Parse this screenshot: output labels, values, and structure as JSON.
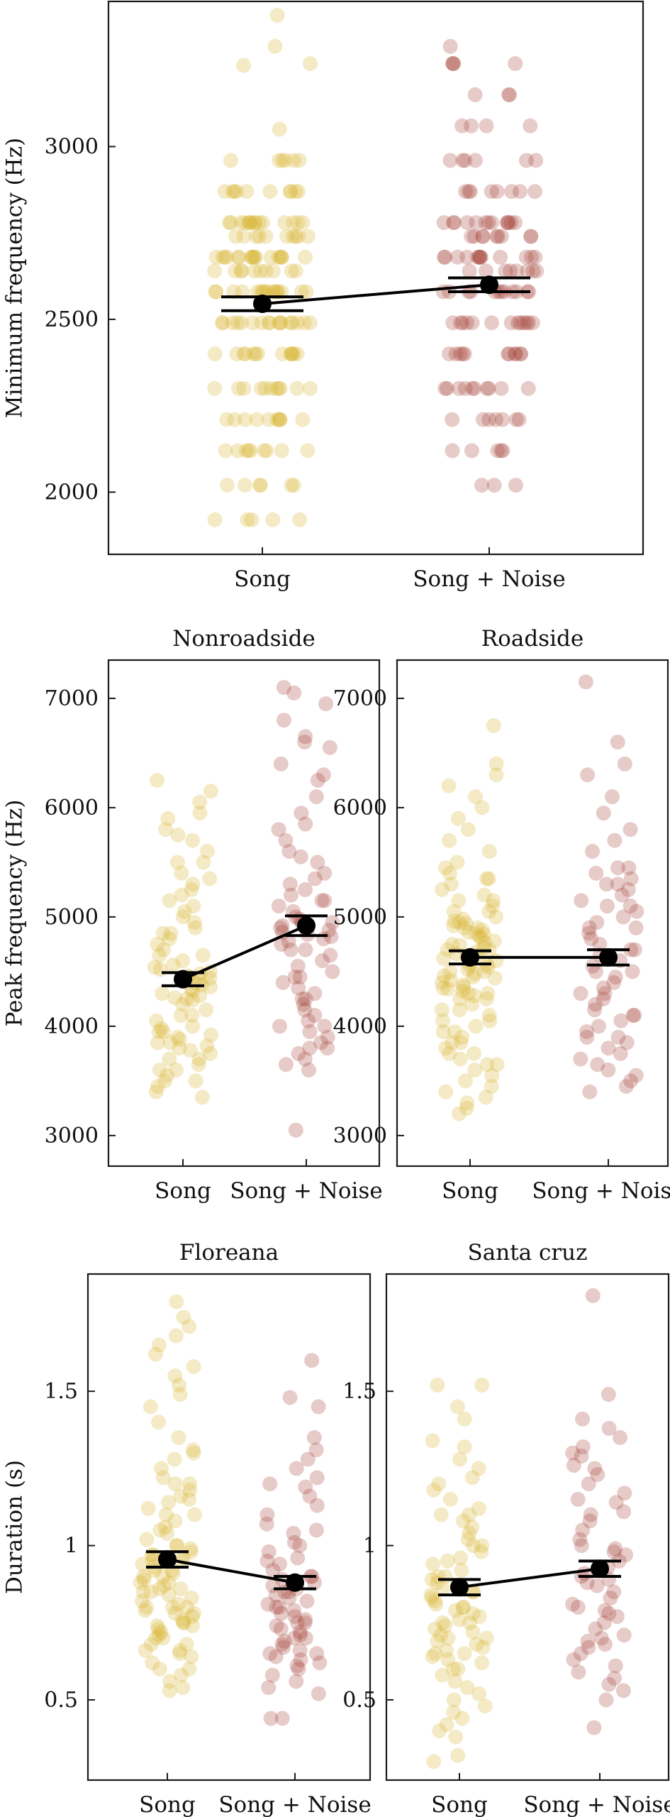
{
  "figure": {
    "colors": {
      "song": "#d9b430",
      "song_noise": "#a4443a",
      "mean": "#000000"
    }
  },
  "chart_data": [
    {
      "type": "scatter",
      "panel": "minimum-frequency",
      "title": "",
      "xlabel": "",
      "ylabel": "Minimum frequency (Hz)",
      "categories": [
        "Song",
        "Song + Noise"
      ],
      "ylim": [
        1820,
        3420
      ],
      "yticks": [
        2000,
        2500,
        3000
      ],
      "grid": false,
      "series": [
        {
          "category": "Song",
          "mean": 2545,
          "error_low": 2525,
          "error_high": 2565,
          "values": [
            3380,
            3235,
            3290,
            3240,
            3050,
            2960,
            2960,
            2960,
            2960,
            2960,
            2960,
            2870,
            2870,
            2870,
            2870,
            2870,
            2870,
            2870,
            2870,
            2870,
            2870,
            2780,
            2780,
            2780,
            2780,
            2780,
            2780,
            2780,
            2780,
            2780,
            2780,
            2780,
            2780,
            2780,
            2780,
            2780,
            2740,
            2740,
            2740,
            2740,
            2740,
            2740,
            2740,
            2740,
            2740,
            2740,
            2680,
            2680,
            2680,
            2680,
            2680,
            2680,
            2680,
            2680,
            2680,
            2680,
            2680,
            2680,
            2680,
            2680,
            2680,
            2680,
            2680,
            2640,
            2640,
            2640,
            2640,
            2640,
            2640,
            2640,
            2640,
            2640,
            2640,
            2580,
            2580,
            2580,
            2580,
            2580,
            2580,
            2580,
            2580,
            2580,
            2580,
            2580,
            2580,
            2580,
            2580,
            2580,
            2580,
            2490,
            2490,
            2490,
            2490,
            2490,
            2490,
            2490,
            2490,
            2490,
            2490,
            2490,
            2490,
            2490,
            2490,
            2490,
            2490,
            2490,
            2400,
            2400,
            2400,
            2400,
            2400,
            2400,
            2400,
            2400,
            2400,
            2400,
            2400,
            2400,
            2400,
            2300,
            2300,
            2300,
            2300,
            2300,
            2300,
            2300,
            2300,
            2300,
            2300,
            2300,
            2210,
            2210,
            2210,
            2210,
            2210,
            2210,
            2210,
            2210,
            2210,
            2210,
            2120,
            2120,
            2120,
            2120,
            2120,
            2120,
            2120,
            2120,
            2120,
            2020,
            2020,
            2020,
            2020,
            2020,
            2020,
            1920,
            1920,
            1920,
            1920,
            1920
          ]
        },
        {
          "category": "Song + Noise",
          "mean": 2600,
          "error_low": 2580,
          "error_high": 2620,
          "values": [
            3290,
            3240,
            3240,
            3240,
            3240,
            3150,
            3150,
            3150,
            3060,
            3060,
            3060,
            3060,
            2960,
            2960,
            2960,
            2960,
            2960,
            2960,
            2870,
            2870,
            2870,
            2870,
            2870,
            2870,
            2870,
            2870,
            2780,
            2780,
            2780,
            2780,
            2780,
            2780,
            2780,
            2780,
            2780,
            2780,
            2780,
            2780,
            2780,
            2740,
            2740,
            2740,
            2740,
            2740,
            2740,
            2740,
            2740,
            2740,
            2680,
            2680,
            2680,
            2680,
            2680,
            2680,
            2680,
            2680,
            2680,
            2680,
            2680,
            2680,
            2680,
            2640,
            2640,
            2640,
            2640,
            2640,
            2640,
            2640,
            2640,
            2580,
            2580,
            2580,
            2580,
            2580,
            2580,
            2580,
            2580,
            2580,
            2580,
            2580,
            2580,
            2490,
            2490,
            2490,
            2490,
            2490,
            2490,
            2490,
            2490,
            2490,
            2490,
            2490,
            2490,
            2490,
            2400,
            2400,
            2400,
            2400,
            2400,
            2400,
            2400,
            2400,
            2400,
            2400,
            2400,
            2300,
            2300,
            2300,
            2300,
            2300,
            2300,
            2300,
            2300,
            2300,
            2300,
            2210,
            2210,
            2210,
            2210,
            2210,
            2210,
            2210,
            2120,
            2120,
            2120,
            2120,
            2120,
            2020,
            2020,
            2020
          ]
        }
      ]
    },
    {
      "type": "scatter",
      "panel": "peak-frequency-nonroadside",
      "title": "Nonroadside",
      "xlabel": "",
      "ylabel": "Peak frequency (Hz)",
      "categories": [
        "Song",
        "Song + Noise"
      ],
      "ylim": [
        2720,
        7350
      ],
      "yticks": [
        3000,
        4000,
        5000,
        6000,
        7000
      ],
      "grid": false,
      "series": [
        {
          "category": "Song",
          "mean": 4430,
          "error_low": 4370,
          "error_high": 4490,
          "values": [
            6250,
            6150,
            6050,
            5950,
            5900,
            5800,
            5700,
            5600,
            5500,
            5400,
            5350,
            5300,
            5200,
            5100,
            5050,
            5000,
            4950,
            4900,
            4850,
            4800,
            4750,
            4700,
            4650,
            4600,
            4560,
            4540,
            4520,
            4500,
            4480,
            4460,
            4440,
            4420,
            4400,
            4380,
            4360,
            4340,
            4320,
            4300,
            4280,
            4260,
            4240,
            4200,
            4150,
            4100,
            4050,
            4000,
            3980,
            3950,
            3920,
            3900,
            3880,
            3850,
            3820,
            3800,
            3780,
            3750,
            3700,
            3650,
            3600,
            3550,
            3500,
            3450,
            3400,
            3350,
            5750,
            5500,
            5250,
            5150,
            4850,
            4650,
            4450,
            4250,
            4100,
            3950,
            3850,
            3700,
            3600,
            3500
          ]
        },
        {
          "category": "Song + Noise",
          "mean": 4920,
          "error_low": 4830,
          "error_high": 5010,
          "values": [
            7100,
            7050,
            6950,
            6800,
            6650,
            6550,
            6400,
            6250,
            6100,
            5950,
            5800,
            5700,
            5600,
            5500,
            5400,
            5350,
            5300,
            5250,
            5200,
            5150,
            5100,
            5050,
            5000,
            4980,
            4960,
            4940,
            4920,
            4900,
            4880,
            4860,
            4840,
            4820,
            4800,
            4780,
            4750,
            4700,
            4650,
            4600,
            4550,
            4500,
            4450,
            4400,
            4350,
            4300,
            4250,
            4200,
            4150,
            4100,
            4050,
            4000,
            3950,
            3900,
            3850,
            3800,
            3750,
            3700,
            3650,
            3600,
            3050,
            6600,
            6300,
            5850,
            5550,
            5150,
            4950,
            4700,
            4450,
            4250,
            4000,
            3800
          ]
        }
      ]
    },
    {
      "type": "scatter",
      "panel": "peak-frequency-roadside",
      "title": "Roadside",
      "xlabel": "",
      "ylabel": "",
      "categories": [
        "Song",
        "Song + Noise"
      ],
      "ylim": [
        2720,
        7350
      ],
      "yticks": [
        3000,
        4000,
        5000,
        6000,
        7000
      ],
      "grid": false,
      "series": [
        {
          "category": "Song",
          "mean": 4630,
          "error_low": 4570,
          "error_high": 4690,
          "values": [
            6750,
            6400,
            6300,
            6200,
            6100,
            6000,
            5900,
            5800,
            5700,
            5600,
            5500,
            5450,
            5400,
            5350,
            5300,
            5250,
            5200,
            5150,
            5100,
            5050,
            5000,
            4980,
            4960,
            4940,
            4920,
            4900,
            4880,
            4860,
            4840,
            4820,
            4800,
            4780,
            4760,
            4740,
            4720,
            4700,
            4680,
            4660,
            4640,
            4620,
            4600,
            4580,
            4560,
            4540,
            4520,
            4500,
            4480,
            4460,
            4440,
            4420,
            4400,
            4380,
            4360,
            4340,
            4320,
            4300,
            4280,
            4250,
            4200,
            4150,
            4100,
            4050,
            4000,
            3950,
            3900,
            3850,
            3800,
            3750,
            3700,
            3650,
            3600,
            3550,
            3500,
            3450,
            3400,
            3350,
            3300,
            3250,
            3200,
            5350,
            5150,
            4950,
            4850,
            4750,
            4650,
            4550,
            4450,
            4350,
            4250,
            4150,
            4050,
            3950,
            3850,
            3750,
            3650,
            5050,
            4900,
            4700,
            4500,
            4300
          ]
        },
        {
          "category": "Song + Noise",
          "mean": 4630,
          "error_low": 4560,
          "error_high": 4700,
          "values": [
            7150,
            6600,
            6400,
            6300,
            6100,
            5950,
            5800,
            5700,
            5600,
            5450,
            5400,
            5350,
            5300,
            5250,
            5200,
            5150,
            5100,
            5050,
            5000,
            4950,
            4900,
            4850,
            4800,
            4750,
            4700,
            4650,
            4600,
            4550,
            4500,
            4450,
            4400,
            4350,
            4300,
            4250,
            4200,
            4150,
            4100,
            4050,
            4000,
            3950,
            3900,
            3850,
            3800,
            3750,
            3700,
            3650,
            3600,
            3550,
            3500,
            3450,
            3400,
            5450,
            5300,
            5100,
            4900,
            4700,
            4500,
            4300,
            4100,
            3900
          ]
        }
      ]
    },
    {
      "type": "scatter",
      "panel": "duration-floreana",
      "title": "Floreana",
      "xlabel": "",
      "ylabel": "Duration (s)",
      "categories": [
        "Song",
        "Song + Noise"
      ],
      "ylim": [
        0.24,
        1.88
      ],
      "yticks": [
        0.5,
        1,
        1.5
      ],
      "grid": false,
      "series": [
        {
          "category": "Song",
          "mean": 0.955,
          "error_low": 0.93,
          "error_high": 0.98,
          "values": [
            1.79,
            1.74,
            1.71,
            1.68,
            1.65,
            1.62,
            1.58,
            1.55,
            1.52,
            1.49,
            1.45,
            1.4,
            1.35,
            1.31,
            1.28,
            1.25,
            1.22,
            1.2,
            1.18,
            1.16,
            1.14,
            1.12,
            1.1,
            1.08,
            1.06,
            1.04,
            1.02,
            1.0,
            0.99,
            0.98,
            0.97,
            0.96,
            0.95,
            0.94,
            0.93,
            0.92,
            0.91,
            0.9,
            0.89,
            0.88,
            0.87,
            0.86,
            0.85,
            0.84,
            0.83,
            0.82,
            0.81,
            0.8,
            0.79,
            0.78,
            0.77,
            0.76,
            0.75,
            0.74,
            0.73,
            0.72,
            0.71,
            0.7,
            0.68,
            0.66,
            0.64,
            0.62,
            0.6,
            0.58,
            0.56,
            0.54,
            0.53,
            1.3,
            1.15,
            1.05,
            0.95,
            0.9,
            0.85,
            0.8,
            0.75,
            0.7,
            0.65,
            0.6,
            1.0,
            0.92,
            0.86,
            0.8,
            0.74,
            0.68,
            1.2,
            1.1,
            0.97,
            0.88,
            0.78,
            0.66
          ]
        },
        {
          "category": "Song + Noise",
          "mean": 0.88,
          "error_low": 0.86,
          "error_high": 0.9,
          "values": [
            1.6,
            1.48,
            1.45,
            1.35,
            1.31,
            1.28,
            1.25,
            1.22,
            1.19,
            1.16,
            1.13,
            1.1,
            1.07,
            1.04,
            1.01,
            0.98,
            0.96,
            0.94,
            0.92,
            0.9,
            0.89,
            0.88,
            0.87,
            0.86,
            0.85,
            0.84,
            0.83,
            0.82,
            0.81,
            0.8,
            0.79,
            0.78,
            0.77,
            0.76,
            0.75,
            0.74,
            0.73,
            0.72,
            0.71,
            0.7,
            0.69,
            0.68,
            0.67,
            0.66,
            0.65,
            0.64,
            0.63,
            0.62,
            0.61,
            0.6,
            0.58,
            0.56,
            0.54,
            0.52,
            0.44,
            0.44,
            1.2,
            1.05,
            0.95,
            0.85,
            0.75,
            0.65,
            1.0,
            0.9,
            0.8,
            0.7
          ]
        }
      ]
    },
    {
      "type": "scatter",
      "panel": "duration-santa-cruz",
      "title": "Santa cruz",
      "xlabel": "",
      "ylabel": "",
      "categories": [
        "Song",
        "Song + Noise"
      ],
      "ylim": [
        0.24,
        1.88
      ],
      "yticks": [
        0.5,
        1,
        1.5
      ],
      "grid": false,
      "series": [
        {
          "category": "Song",
          "mean": 0.865,
          "error_low": 0.84,
          "error_high": 0.89,
          "values": [
            1.52,
            1.52,
            1.45,
            1.41,
            1.34,
            1.32,
            1.28,
            1.25,
            1.22,
            1.2,
            1.18,
            1.15,
            1.12,
            1.1,
            1.08,
            1.06,
            1.04,
            1.02,
            1.0,
            0.98,
            0.96,
            0.94,
            0.92,
            0.9,
            0.89,
            0.88,
            0.87,
            0.86,
            0.85,
            0.84,
            0.83,
            0.82,
            0.81,
            0.8,
            0.79,
            0.78,
            0.77,
            0.76,
            0.75,
            0.74,
            0.73,
            0.72,
            0.71,
            0.7,
            0.69,
            0.68,
            0.67,
            0.66,
            0.65,
            0.64,
            0.63,
            0.62,
            0.6,
            0.58,
            0.56,
            0.54,
            0.52,
            0.5,
            0.48,
            0.46,
            0.44,
            0.42,
            0.4,
            0.38,
            0.32,
            0.3,
            1.1,
            1.0,
            0.9,
            0.8,
            0.7,
            0.6,
            0.95,
            0.85,
            0.75,
            0.65
          ]
        },
        {
          "category": "Song + Noise",
          "mean": 0.925,
          "error_low": 0.9,
          "error_high": 0.95,
          "values": [
            1.81,
            1.49,
            1.41,
            1.38,
            1.35,
            1.32,
            1.29,
            1.26,
            1.23,
            1.2,
            1.17,
            1.14,
            1.11,
            1.08,
            1.05,
            1.02,
            0.99,
            0.97,
            0.95,
            0.93,
            0.91,
            0.89,
            0.87,
            0.85,
            0.83,
            0.81,
            0.79,
            0.77,
            0.75,
            0.73,
            0.71,
            0.69,
            0.67,
            0.65,
            0.63,
            0.61,
            0.59,
            0.57,
            0.55,
            0.53,
            0.5,
            0.41,
            1.3,
            1.15,
            1.0,
            0.9,
            0.8,
            0.7,
            1.25,
            1.1,
            0.98,
            0.88,
            0.78,
            0.68
          ]
        }
      ]
    }
  ]
}
